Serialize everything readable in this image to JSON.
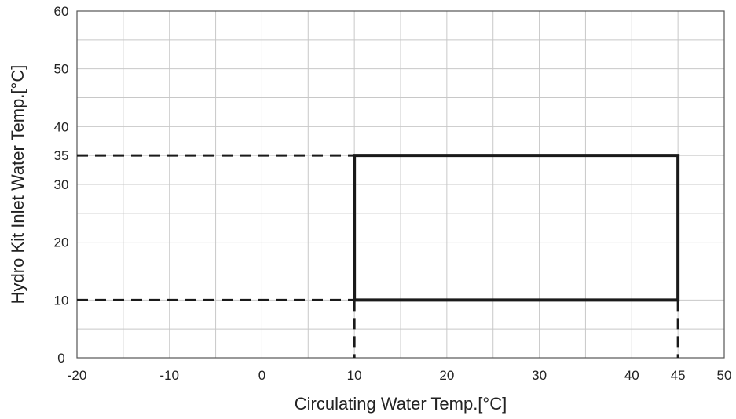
{
  "chart_data": {
    "type": "line",
    "xlabel": "Circulating Water Temp.[°C]",
    "ylabel": "Hydro Kit Inlet Water Temp.[°C]",
    "xlim": [
      -20,
      50
    ],
    "ylim": [
      0,
      60
    ],
    "x_ticks": [
      -20,
      -10,
      0,
      10,
      20,
      30,
      40,
      45,
      50
    ],
    "y_ticks": [
      0,
      10,
      20,
      30,
      35,
      40,
      50,
      60
    ],
    "grid": true,
    "minor_grid_step_x": 5,
    "minor_grid_step_y": 5,
    "series": [
      {
        "style": "solid",
        "points": [
          [
            10,
            10
          ],
          [
            45,
            10
          ],
          [
            45,
            35
          ],
          [
            10,
            35
          ],
          [
            10,
            10
          ]
        ]
      }
    ],
    "reference_lines": [
      {
        "style": "dashed",
        "points": [
          [
            -20,
            35
          ],
          [
            10,
            35
          ]
        ]
      },
      {
        "style": "dashed",
        "points": [
          [
            -20,
            10
          ],
          [
            10,
            10
          ]
        ]
      },
      {
        "style": "dashed",
        "points": [
          [
            10,
            10
          ],
          [
            10,
            0
          ]
        ]
      },
      {
        "style": "dashed",
        "points": [
          [
            45,
            10
          ],
          [
            45,
            0
          ]
        ]
      }
    ],
    "colors": {
      "line": "#1a1a1a",
      "grid": "#c8c8c8",
      "frame": "#555555"
    }
  }
}
